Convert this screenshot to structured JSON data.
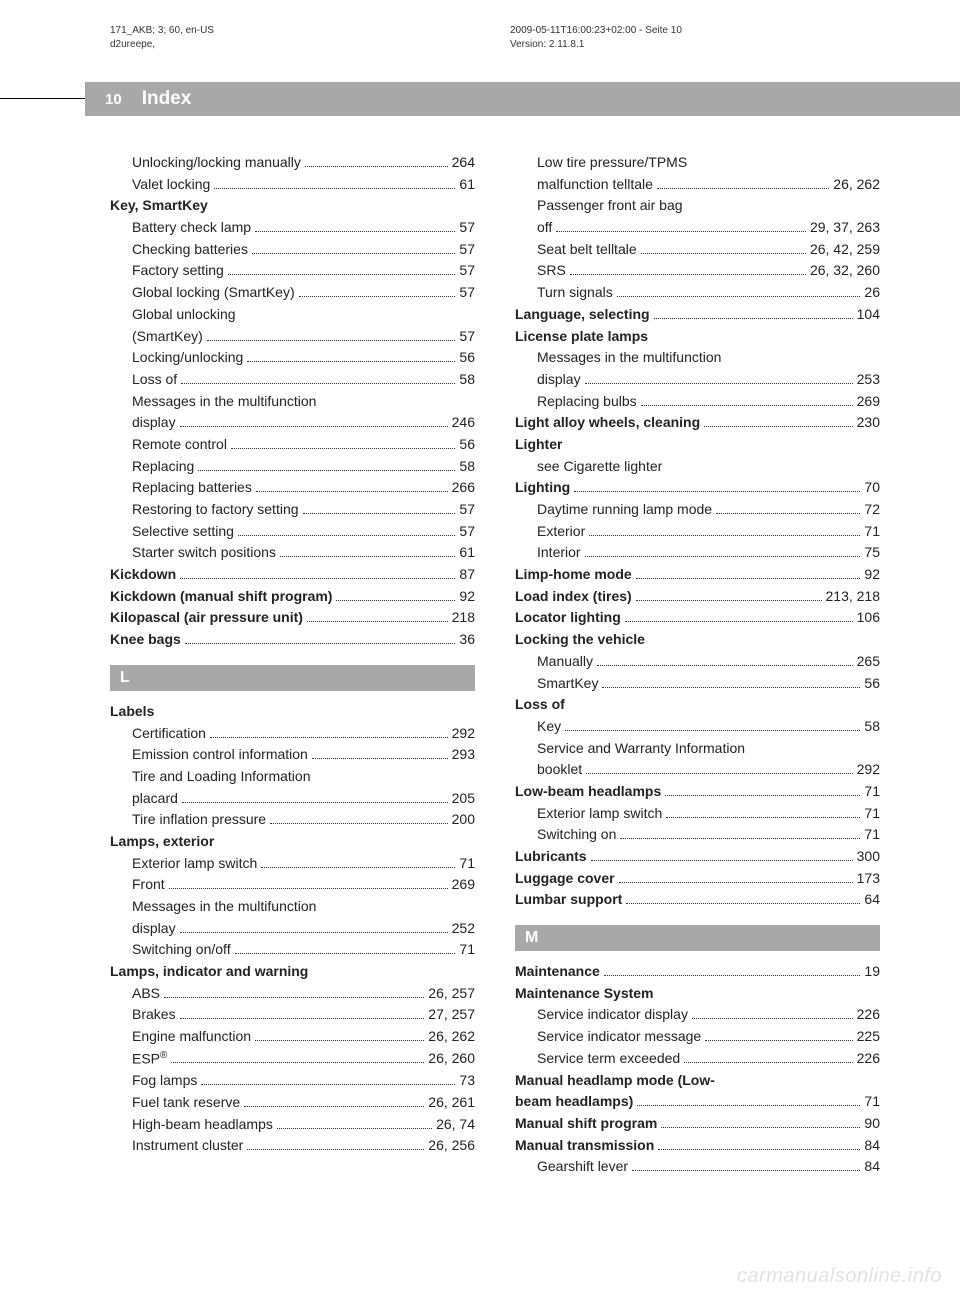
{
  "meta": {
    "left_line1": "171_AKB; 3; 60, en-US",
    "left_line2": "d2ureepe,",
    "right_line1": "2009-05-11T16:00:23+02:00 - Seite 10",
    "right_line2": "Version: 2.11.8.1"
  },
  "header": {
    "page_num": "10",
    "title": "Index"
  },
  "col_left": [
    {
      "sub": true,
      "label": "Unlocking/locking manually",
      "pg": "264"
    },
    {
      "sub": true,
      "label": "Valet locking",
      "pg": "61"
    },
    {
      "sub": false,
      "bold": true,
      "label": "Key, SmartKey"
    },
    {
      "sub": true,
      "label": "Battery check lamp",
      "pg": "57"
    },
    {
      "sub": true,
      "label": "Checking batteries",
      "pg": "57"
    },
    {
      "sub": true,
      "label": "Factory setting",
      "pg": "57"
    },
    {
      "sub": true,
      "label": "Global locking (SmartKey)",
      "pg": "57"
    },
    {
      "sub": true,
      "label": "Global unlocking"
    },
    {
      "sub": true,
      "label": "(SmartKey)",
      "pg": "57"
    },
    {
      "sub": true,
      "label": "Locking/unlocking",
      "pg": "56"
    },
    {
      "sub": true,
      "label": "Loss of",
      "pg": "58"
    },
    {
      "sub": true,
      "label": "Messages in the multifunction"
    },
    {
      "sub": true,
      "label": "display",
      "pg": "246"
    },
    {
      "sub": true,
      "label": "Remote control",
      "pg": "56"
    },
    {
      "sub": true,
      "label": "Replacing",
      "pg": "58"
    },
    {
      "sub": true,
      "label": "Replacing batteries",
      "pg": "266"
    },
    {
      "sub": true,
      "label": "Restoring to factory setting",
      "pg": "57"
    },
    {
      "sub": true,
      "label": "Selective setting",
      "pg": "57"
    },
    {
      "sub": true,
      "label": "Starter switch positions",
      "pg": "61"
    },
    {
      "sub": false,
      "bold": true,
      "label": "Kickdown",
      "pg": "87"
    },
    {
      "sub": false,
      "bold": true,
      "label": "Kickdown (manual shift program)",
      "pg": "92"
    },
    {
      "sub": false,
      "bold": true,
      "label": "Kilopascal (air pressure unit)",
      "pg": "218"
    },
    {
      "sub": false,
      "bold": true,
      "label": "Knee bags",
      "pg": "36"
    },
    {
      "letter": "L"
    },
    {
      "sub": false,
      "bold": true,
      "label": "Labels"
    },
    {
      "sub": true,
      "label": "Certification",
      "pg": "292"
    },
    {
      "sub": true,
      "label": "Emission control information",
      "pg": "293"
    },
    {
      "sub": true,
      "label": "Tire and Loading Information"
    },
    {
      "sub": true,
      "label": "placard",
      "pg": "205"
    },
    {
      "sub": true,
      "label": "Tire inflation pressure",
      "pg": "200"
    },
    {
      "sub": false,
      "bold": true,
      "label": "Lamps, exterior"
    },
    {
      "sub": true,
      "label": "Exterior lamp switch",
      "pg": "71"
    },
    {
      "sub": true,
      "label": "Front",
      "pg": "269"
    },
    {
      "sub": true,
      "label": "Messages in the multifunction"
    },
    {
      "sub": true,
      "label": "display",
      "pg": "252"
    },
    {
      "sub": true,
      "label": "Switching on/off",
      "pg": "71"
    },
    {
      "sub": false,
      "bold": true,
      "label": "Lamps, indicator and warning"
    },
    {
      "sub": true,
      "label": "ABS",
      "pg": "26, 257"
    },
    {
      "sub": true,
      "label": "Brakes",
      "pg": "27, 257"
    },
    {
      "sub": true,
      "label": "Engine malfunction",
      "pg": "26, 262"
    },
    {
      "sub": true,
      "html": "ESP<sup>®</sup>",
      "pg": "26, 260"
    },
    {
      "sub": true,
      "label": "Fog lamps",
      "pg": "73"
    },
    {
      "sub": true,
      "label": "Fuel tank reserve",
      "pg": "26, 261"
    },
    {
      "sub": true,
      "label": "High-beam headlamps",
      "pg": "26, 74"
    },
    {
      "sub": true,
      "label": "Instrument cluster",
      "pg": "26, 256"
    }
  ],
  "col_right": [
    {
      "sub": true,
      "label": "Low tire pressure/TPMS"
    },
    {
      "sub": true,
      "label": "malfunction telltale",
      "pg": "26, 262"
    },
    {
      "sub": true,
      "label": "Passenger front air bag"
    },
    {
      "sub": true,
      "label": "off",
      "pg": "29, 37, 263"
    },
    {
      "sub": true,
      "label": "Seat belt telltale",
      "pg": "26, 42, 259"
    },
    {
      "sub": true,
      "label": "SRS",
      "pg": "26, 32, 260"
    },
    {
      "sub": true,
      "label": "Turn signals",
      "pg": "26"
    },
    {
      "sub": false,
      "bold": true,
      "label": "Language, selecting",
      "pg": "104"
    },
    {
      "sub": false,
      "bold": true,
      "label": "License plate lamps"
    },
    {
      "sub": true,
      "label": "Messages in the multifunction"
    },
    {
      "sub": true,
      "label": "display",
      "pg": "253"
    },
    {
      "sub": true,
      "label": "Replacing bulbs",
      "pg": "269"
    },
    {
      "sub": false,
      "bold": true,
      "label": "Light alloy wheels, cleaning",
      "pg": "230"
    },
    {
      "sub": false,
      "bold": true,
      "label": "Lighter"
    },
    {
      "sub": true,
      "label": "see Cigarette lighter"
    },
    {
      "sub": false,
      "bold": true,
      "label": "Lighting",
      "pg": "70"
    },
    {
      "sub": true,
      "label": "Daytime running lamp mode",
      "pg": "72"
    },
    {
      "sub": true,
      "label": "Exterior",
      "pg": "71"
    },
    {
      "sub": true,
      "label": "Interior",
      "pg": "75"
    },
    {
      "sub": false,
      "bold": true,
      "label": "Limp-home mode",
      "pg": "92"
    },
    {
      "sub": false,
      "bold": true,
      "label": "Load index (tires)",
      "pg": "213, 218"
    },
    {
      "sub": false,
      "bold": true,
      "label": "Locator lighting",
      "pg": "106"
    },
    {
      "sub": false,
      "bold": true,
      "label": "Locking the vehicle"
    },
    {
      "sub": true,
      "label": "Manually",
      "pg": "265"
    },
    {
      "sub": true,
      "label": "SmartKey",
      "pg": "56"
    },
    {
      "sub": false,
      "bold": true,
      "label": "Loss of"
    },
    {
      "sub": true,
      "label": "Key",
      "pg": "58"
    },
    {
      "sub": true,
      "label": "Service and Warranty Information"
    },
    {
      "sub": true,
      "label": "booklet",
      "pg": "292"
    },
    {
      "sub": false,
      "bold": true,
      "label": "Low-beam headlamps",
      "pg": "71"
    },
    {
      "sub": true,
      "label": "Exterior lamp switch",
      "pg": "71"
    },
    {
      "sub": true,
      "label": "Switching on",
      "pg": "71"
    },
    {
      "sub": false,
      "bold": true,
      "label": "Lubricants",
      "pg": "300"
    },
    {
      "sub": false,
      "bold": true,
      "label": "Luggage cover",
      "pg": "173"
    },
    {
      "sub": false,
      "bold": true,
      "label": "Lumbar support",
      "pg": "64"
    },
    {
      "letter": "M"
    },
    {
      "sub": false,
      "bold": true,
      "label": "Maintenance",
      "pg": "19"
    },
    {
      "sub": false,
      "bold": true,
      "label": "Maintenance System"
    },
    {
      "sub": true,
      "label": "Service indicator display",
      "pg": "226"
    },
    {
      "sub": true,
      "label": "Service indicator message",
      "pg": "225"
    },
    {
      "sub": true,
      "label": "Service term exceeded",
      "pg": "226"
    },
    {
      "sub": false,
      "bold": true,
      "label": "Manual headlamp mode (Low-"
    },
    {
      "sub": false,
      "bold": true,
      "label": "beam headlamps)",
      "pg": "71"
    },
    {
      "sub": false,
      "bold": true,
      "label": "Manual shift program",
      "pg": "90"
    },
    {
      "sub": false,
      "bold": true,
      "label": "Manual transmission",
      "pg": "84"
    },
    {
      "sub": true,
      "label": "Gearshift lever",
      "pg": "84"
    }
  ],
  "watermark": "carmanualsonline.info"
}
